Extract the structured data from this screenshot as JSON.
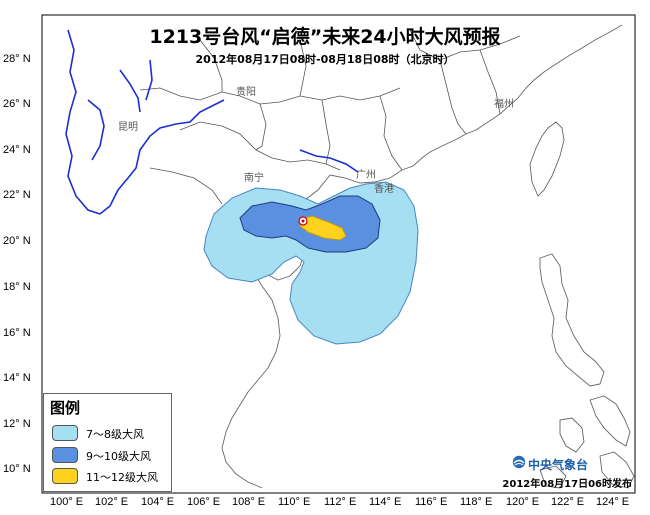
{
  "title": "1213号台风“启德”未来24小时大风预报",
  "subtitle": "2012年08月17日08时-08月18日08时（北京时）",
  "lat_labels": [
    "28° N",
    "26° N",
    "24° N",
    "22° N",
    "20° N",
    "18° N",
    "16° N",
    "14° N",
    "12° N",
    "10° N"
  ],
  "lon_labels": [
    "100° E",
    "102° E",
    "104° E",
    "106° E",
    "108° E",
    "110° E",
    "112° E",
    "114° E",
    "116° E",
    "118° E",
    "120° E",
    "122° E",
    "124° E"
  ],
  "cities": {
    "guiyang": "贵阳",
    "kunming": "昆明",
    "nanning": "南宁",
    "guangzhou": "广州",
    "fuzhou": "福州",
    "hongkong": "香港"
  },
  "legend": {
    "title": "图例",
    "items": [
      {
        "label": "7～8级大风",
        "color": "#a6def2"
      },
      {
        "label": "9～10级大风",
        "color": "#5b8fe0"
      },
      {
        "label": "11～12级大风",
        "color": "#ffd21f"
      }
    ]
  },
  "agency": "中央气象台",
  "issue_time": "2012年08月17日06时发布",
  "colors": {
    "zone_7_8": "#a6def2",
    "zone_9_10": "#5b8fe0",
    "zone_11_12": "#ffd21f",
    "province_border": "#555555",
    "river": "#1a2fd1"
  }
}
